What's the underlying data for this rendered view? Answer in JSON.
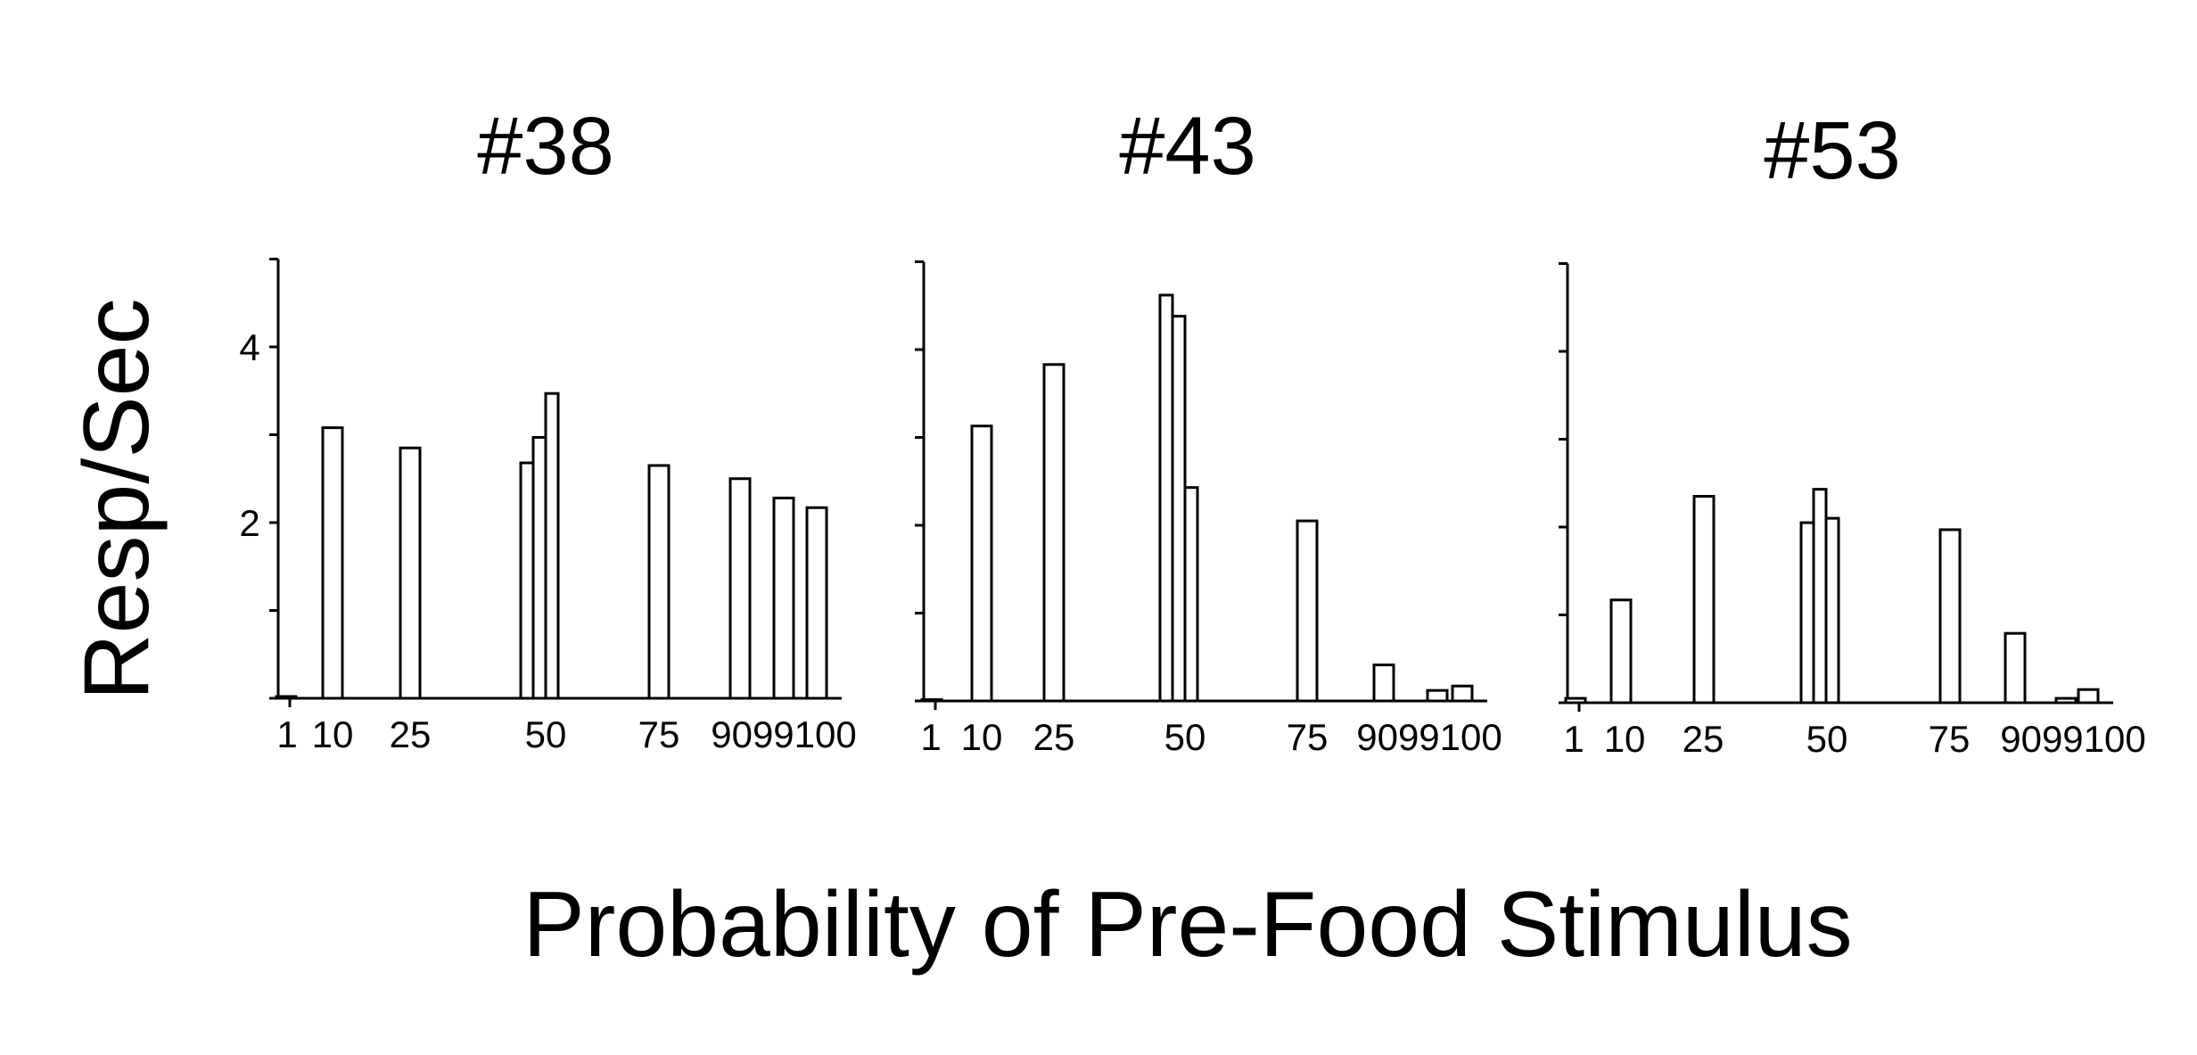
{
  "chart_data": {
    "type": "bar",
    "ylabel": "Resp/Sec",
    "xlabel": "Probability of Pre-Food Stimulus",
    "ylim": [
      0,
      5
    ],
    "yticks": [
      0,
      1,
      2,
      3,
      4,
      5
    ],
    "ytick_labels": [
      "",
      "",
      "2",
      "",
      "4",
      ""
    ],
    "grid": false,
    "xtick_labels": [
      "1",
      "10",
      "25",
      "50",
      "75",
      "9099100"
    ],
    "panels": [
      {
        "title": "#38",
        "bars": [
          {
            "x": 1,
            "y": 0.02
          },
          {
            "x": 10,
            "y": 3.08
          },
          {
            "x": 25,
            "y": 2.85
          },
          {
            "x": 50,
            "y": 2.68
          },
          {
            "x": 50,
            "y": 2.97
          },
          {
            "x": 50,
            "y": 3.47
          },
          {
            "x": 75,
            "y": 2.65
          },
          {
            "x": 90,
            "y": 2.5
          },
          {
            "x": 99,
            "y": 2.28
          },
          {
            "x": 100,
            "y": 2.17
          }
        ]
      },
      {
        "title": "#43",
        "bars": [
          {
            "x": 1,
            "y": 0.0
          },
          {
            "x": 10,
            "y": 3.13
          },
          {
            "x": 25,
            "y": 3.83
          },
          {
            "x": 50,
            "y": 4.62
          },
          {
            "x": 50,
            "y": 4.38
          },
          {
            "x": 50,
            "y": 2.43
          },
          {
            "x": 75,
            "y": 2.05
          },
          {
            "x": 90,
            "y": 0.41
          },
          {
            "x": 99,
            "y": 0.12
          },
          {
            "x": 100,
            "y": 0.17
          }
        ]
      },
      {
        "title": "#53",
        "bars": [
          {
            "x": 1,
            "y": 0.05
          },
          {
            "x": 10,
            "y": 1.17
          },
          {
            "x": 25,
            "y": 2.35
          },
          {
            "x": 50,
            "y": 2.05
          },
          {
            "x": 50,
            "y": 2.43
          },
          {
            "x": 50,
            "y": 2.1
          },
          {
            "x": 75,
            "y": 1.97
          },
          {
            "x": 90,
            "y": 0.79
          },
          {
            "x": 99,
            "y": 0.05
          },
          {
            "x": 100,
            "y": 0.15
          }
        ]
      }
    ]
  }
}
